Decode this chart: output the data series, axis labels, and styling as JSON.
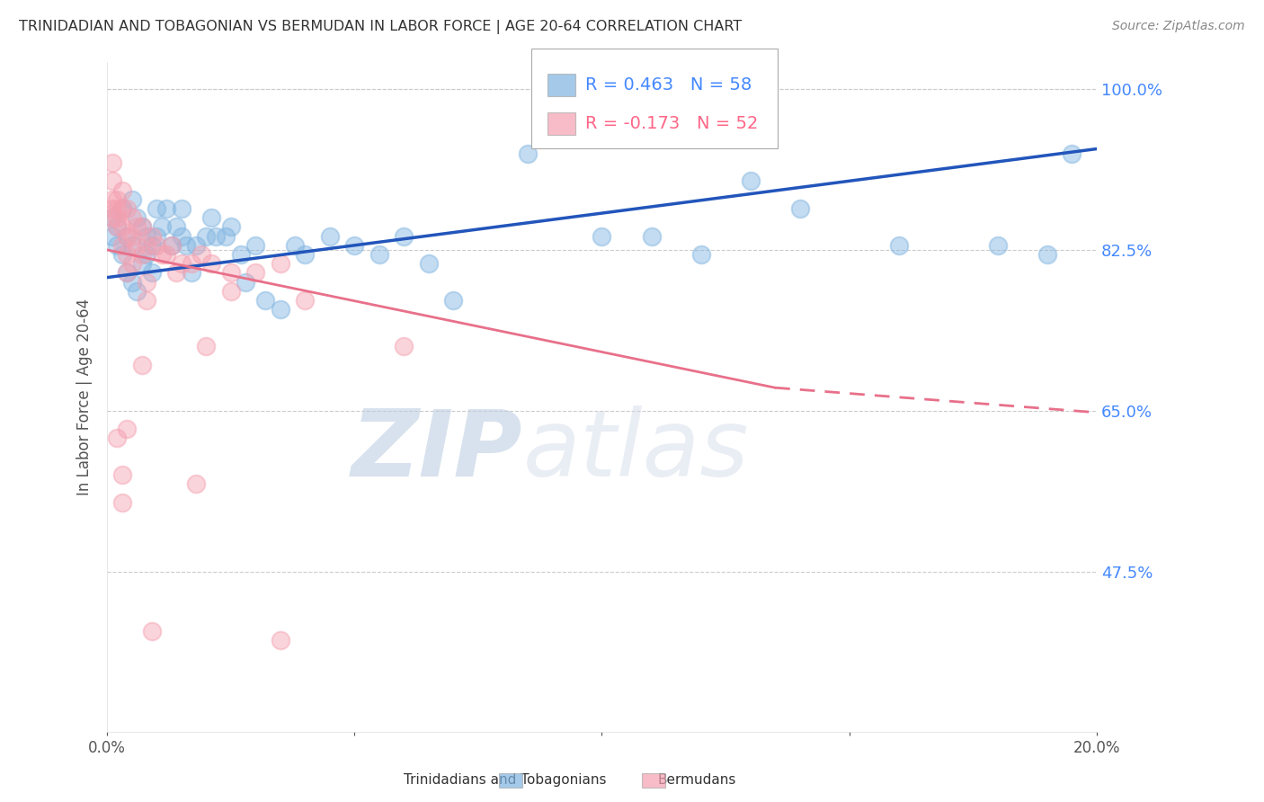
{
  "title": "TRINIDADIAN AND TOBAGONIAN VS BERMUDAN IN LABOR FORCE | AGE 20-64 CORRELATION CHART",
  "source": "Source: ZipAtlas.com",
  "ylabel": "In Labor Force | Age 20-64",
  "xlim": [
    0.0,
    0.2
  ],
  "ylim": [
    0.3,
    1.03
  ],
  "yticks": [
    0.475,
    0.65,
    0.825,
    1.0
  ],
  "ytick_labels": [
    "47.5%",
    "65.0%",
    "82.5%",
    "100.0%"
  ],
  "xticks": [
    0.0,
    0.05,
    0.1,
    0.15,
    0.2
  ],
  "xtick_labels": [
    "0.0%",
    "",
    "",
    "",
    "20.0%"
  ],
  "legend_blue_r": "R = 0.463",
  "legend_blue_n": "N = 58",
  "legend_pink_r": "R = -0.173",
  "legend_pink_n": "N = 52",
  "blue_color": "#7EB3E0",
  "pink_color": "#F4A0B0",
  "trend_blue_color": "#2255BB",
  "trend_pink_solid_color": "#E8708A",
  "trend_pink_dash_color": "#E8708A",
  "blue_scatter_x": [
    0.001,
    0.001,
    0.002,
    0.002,
    0.003,
    0.003,
    0.004,
    0.004,
    0.005,
    0.005,
    0.005,
    0.006,
    0.006,
    0.007,
    0.007,
    0.008,
    0.008,
    0.009,
    0.009,
    0.01,
    0.01,
    0.011,
    0.012,
    0.013,
    0.014,
    0.015,
    0.015,
    0.016,
    0.017,
    0.018,
    0.02,
    0.021,
    0.022,
    0.024,
    0.025,
    0.027,
    0.028,
    0.03,
    0.032,
    0.035,
    0.038,
    0.04,
    0.045,
    0.05,
    0.055,
    0.06,
    0.065,
    0.07,
    0.085,
    0.1,
    0.11,
    0.12,
    0.13,
    0.14,
    0.16,
    0.18,
    0.19,
    0.195
  ],
  "blue_scatter_y": [
    0.84,
    0.86,
    0.83,
    0.85,
    0.82,
    0.87,
    0.8,
    0.84,
    0.79,
    0.83,
    0.88,
    0.78,
    0.86,
    0.81,
    0.85,
    0.82,
    0.84,
    0.8,
    0.83,
    0.84,
    0.87,
    0.85,
    0.87,
    0.83,
    0.85,
    0.84,
    0.87,
    0.83,
    0.8,
    0.83,
    0.84,
    0.86,
    0.84,
    0.84,
    0.85,
    0.82,
    0.79,
    0.83,
    0.77,
    0.76,
    0.83,
    0.82,
    0.84,
    0.83,
    0.82,
    0.84,
    0.81,
    0.77,
    0.93,
    0.84,
    0.84,
    0.82,
    0.9,
    0.87,
    0.83,
    0.83,
    0.82,
    0.93
  ],
  "pink_scatter_x": [
    0.001,
    0.001,
    0.001,
    0.001,
    0.001,
    0.002,
    0.002,
    0.002,
    0.002,
    0.003,
    0.003,
    0.003,
    0.003,
    0.004,
    0.004,
    0.004,
    0.005,
    0.005,
    0.005,
    0.006,
    0.006,
    0.007,
    0.007,
    0.008,
    0.009,
    0.01,
    0.011,
    0.012,
    0.013,
    0.014,
    0.015,
    0.017,
    0.019,
    0.021,
    0.025,
    0.03,
    0.035,
    0.007,
    0.004,
    0.002,
    0.003,
    0.003,
    0.018,
    0.02,
    0.004,
    0.025,
    0.008,
    0.008,
    0.009,
    0.06,
    0.04,
    0.035
  ],
  "pink_scatter_y": [
    0.88,
    0.87,
    0.86,
    0.9,
    0.92,
    0.85,
    0.87,
    0.88,
    0.86,
    0.83,
    0.85,
    0.87,
    0.89,
    0.82,
    0.84,
    0.87,
    0.81,
    0.84,
    0.86,
    0.83,
    0.85,
    0.82,
    0.85,
    0.83,
    0.84,
    0.83,
    0.82,
    0.82,
    0.83,
    0.8,
    0.81,
    0.81,
    0.82,
    0.81,
    0.8,
    0.8,
    0.81,
    0.7,
    0.63,
    0.62,
    0.58,
    0.55,
    0.57,
    0.72,
    0.8,
    0.78,
    0.77,
    0.79,
    0.41,
    0.72,
    0.77,
    0.4
  ],
  "blue_trend_x0": 0.0,
  "blue_trend_y0": 0.795,
  "blue_trend_x1": 0.2,
  "blue_trend_y1": 0.935,
  "pink_trend_solid_x0": 0.0,
  "pink_trend_solid_y0": 0.825,
  "pink_trend_solid_x1": 0.135,
  "pink_trend_solid_y1": 0.675,
  "pink_trend_dash_x0": 0.135,
  "pink_trend_dash_y0": 0.675,
  "pink_trend_dash_x1": 0.2,
  "pink_trend_dash_y1": 0.648,
  "watermark_zip": "ZIP",
  "watermark_atlas": "atlas",
  "background_color": "#FFFFFF",
  "grid_color": "#CCCCCC",
  "tick_color": "#4488FF",
  "label_color": "#555555"
}
